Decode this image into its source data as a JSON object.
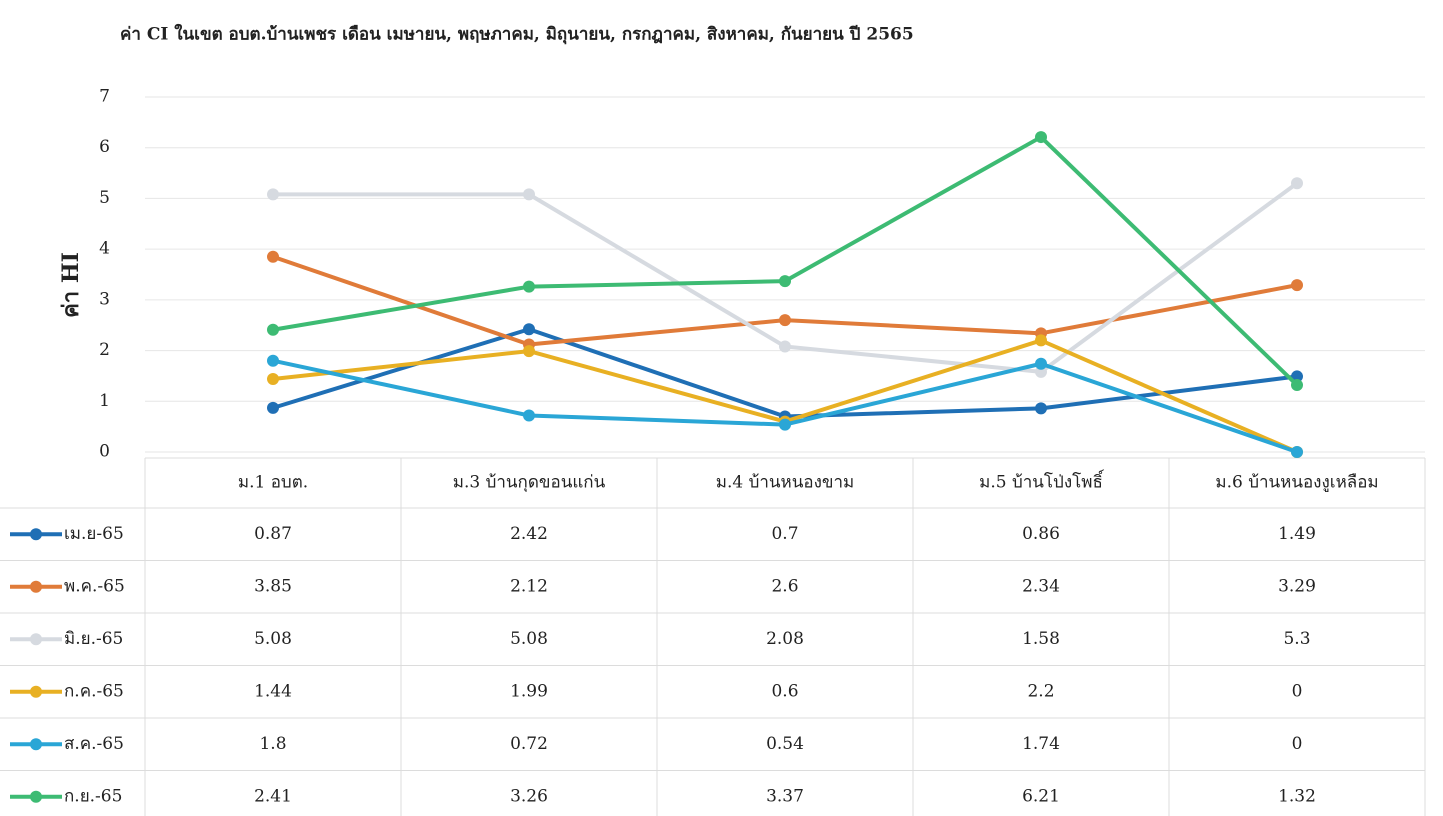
{
  "chart_data": {
    "type": "line",
    "title": "ค่า CI ในเขต อบต.บ้านเพชร เดือน เมษายน, พฤษภาคม, มิถุนายน, กรกฎาคม, สิงหาคม, กันยายน  ปี 2565",
    "y_label": "ค่า HI",
    "categories": [
      "ม.1 อบต.",
      "ม.3 บ้านกุดขอนแก่น",
      "ม.4 บ้านหนองขาม",
      "ม.5 บ้านโป่งโพธิ์",
      "ม.6 บ้านหนองงูเหลือม"
    ],
    "series": [
      {
        "name": "เม.ย-65",
        "color": "#1f6fb5",
        "values": [
          0.87,
          2.42,
          0.7,
          0.86,
          1.49
        ]
      },
      {
        "name": "พ.ค.-65",
        "color": "#e07b39",
        "values": [
          3.85,
          2.12,
          2.6,
          2.34,
          3.29
        ]
      },
      {
        "name": "มิ.ย.-65",
        "color": "#d6dae0",
        "values": [
          5.08,
          5.08,
          2.08,
          1.58,
          5.3
        ]
      },
      {
        "name": "ก.ค.-65",
        "color": "#e8b023",
        "values": [
          1.44,
          1.99,
          0.6,
          2.2,
          0
        ]
      },
      {
        "name": "ส.ค.-65",
        "color": "#2aa6d6",
        "values": [
          1.8,
          0.72,
          0.54,
          1.74,
          0
        ]
      },
      {
        "name": "ก.ย.-65",
        "color": "#3dbb73",
        "values": [
          2.41,
          3.26,
          3.37,
          6.21,
          1.32
        ]
      }
    ],
    "ylim": [
      0,
      7
    ],
    "yticks": [
      0,
      1,
      2,
      3,
      4,
      5,
      6,
      7
    ],
    "grid": true
  }
}
